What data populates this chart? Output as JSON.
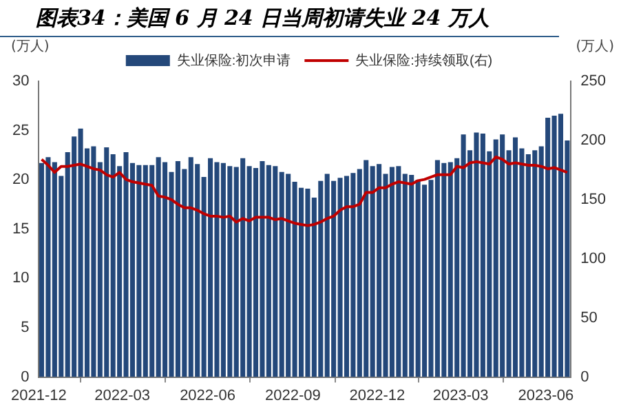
{
  "chart_data": {
    "type": "bar",
    "title": "图表34：美国 6 月 24 日当周初请失业 24 万人",
    "ylabel": "(万人)",
    "y2label": "(万人)",
    "x": [
      "2021-12-04",
      "2021-12-11",
      "2021-12-18",
      "2021-12-25",
      "2022-01-01",
      "2022-01-08",
      "2022-01-15",
      "2022-01-22",
      "2022-01-29",
      "2022-02-05",
      "2022-02-12",
      "2022-02-19",
      "2022-02-26",
      "2022-03-05",
      "2022-03-12",
      "2022-03-19",
      "2022-03-26",
      "2022-04-02",
      "2022-04-09",
      "2022-04-16",
      "2022-04-23",
      "2022-04-30",
      "2022-05-07",
      "2022-05-14",
      "2022-05-21",
      "2022-05-28",
      "2022-06-04",
      "2022-06-11",
      "2022-06-18",
      "2022-06-25",
      "2022-07-02",
      "2022-07-09",
      "2022-07-16",
      "2022-07-23",
      "2022-07-30",
      "2022-08-06",
      "2022-08-13",
      "2022-08-20",
      "2022-08-27",
      "2022-09-03",
      "2022-09-10",
      "2022-09-17",
      "2022-09-24",
      "2022-10-01",
      "2022-10-08",
      "2022-10-15",
      "2022-10-22",
      "2022-10-29",
      "2022-11-05",
      "2022-11-12",
      "2022-11-19",
      "2022-11-26",
      "2022-12-03",
      "2022-12-10",
      "2022-12-17",
      "2022-12-24",
      "2022-12-31",
      "2023-01-07",
      "2023-01-14",
      "2023-01-21",
      "2023-01-28",
      "2023-02-04",
      "2023-02-11",
      "2023-02-18",
      "2023-02-25",
      "2023-03-04",
      "2023-03-11",
      "2023-03-18",
      "2023-03-25",
      "2023-04-01",
      "2023-04-08",
      "2023-04-15",
      "2023-04-22",
      "2023-04-29",
      "2023-05-06",
      "2023-05-13",
      "2023-05-20",
      "2023-05-27",
      "2023-06-03",
      "2023-06-10",
      "2023-06-17",
      "2023-06-24"
    ],
    "series": [
      {
        "name": "失业保险:初次申请",
        "color": "#24487a",
        "values": [
          21.7,
          22.3,
          21.8,
          20.4,
          22.8,
          24.4,
          25.2,
          23.2,
          23.4,
          21.8,
          23.3,
          22.6,
          21.4,
          22.8,
          21.7,
          21.5,
          21.5,
          21.5,
          22.3,
          21.8,
          20.8,
          21.9,
          21.1,
          22.3,
          21.6,
          20.3,
          22.2,
          21.8,
          21.7,
          21.4,
          21.3,
          22.2,
          21.4,
          21.2,
          21.9,
          21.5,
          21.4,
          20.8,
          20.6,
          19.8,
          19.2,
          19.1,
          18.2,
          19.9,
          20.6,
          19.9,
          20.2,
          20.4,
          20.7,
          21.1,
          22.0,
          21.4,
          21.6,
          20.6,
          21.3,
          21.4,
          20.6,
          20.5,
          20.0,
          19.5,
          20.0,
          22.0,
          21.7,
          21.8,
          22.2,
          24.6,
          23.0,
          24.8,
          24.7,
          22.9,
          24.1,
          24.6,
          23.0,
          24.3,
          23.2,
          22.6,
          23.0,
          23.4,
          26.3,
          26.5,
          26.7,
          24.0
        ]
      },
      {
        "name": "失业保险:持续领取(右)",
        "type": "line",
        "axis": "y2",
        "color": "#c00000",
        "values": [
          184,
          179,
          173,
          178,
          178,
          179,
          180,
          178,
          176,
          175,
          171,
          169,
          173,
          167,
          165,
          164,
          163,
          162,
          153,
          152,
          150,
          146,
          143,
          143,
          141,
          138,
          136,
          136,
          135,
          136,
          131,
          134,
          132,
          135,
          135,
          135,
          133,
          134,
          132,
          130,
          129,
          128,
          129,
          131,
          134,
          136,
          141,
          144,
          144,
          146,
          156,
          156,
          160,
          160,
          163,
          165,
          164,
          163,
          166,
          167,
          169,
          171,
          171,
          171,
          178,
          177,
          181,
          182,
          181,
          180,
          186,
          184,
          180,
          181,
          180,
          179,
          179,
          178,
          176,
          177,
          175,
          173
        ]
      }
    ],
    "xlim": [
      "2021-12-01",
      "2023-06-28"
    ],
    "xticks": [
      "2021-12",
      "2022-03",
      "2022-06",
      "2022-09",
      "2022-12",
      "2023-03",
      "2023-06"
    ],
    "ylim": [
      0,
      30
    ],
    "yticks": [
      0,
      5,
      10,
      15,
      20,
      25,
      30
    ],
    "y2lim": [
      0,
      250
    ],
    "y2ticks": [
      0,
      50,
      100,
      150,
      200,
      250
    ],
    "grid": false,
    "legend": "top",
    "marker": "none",
    "line_style": "solid"
  }
}
